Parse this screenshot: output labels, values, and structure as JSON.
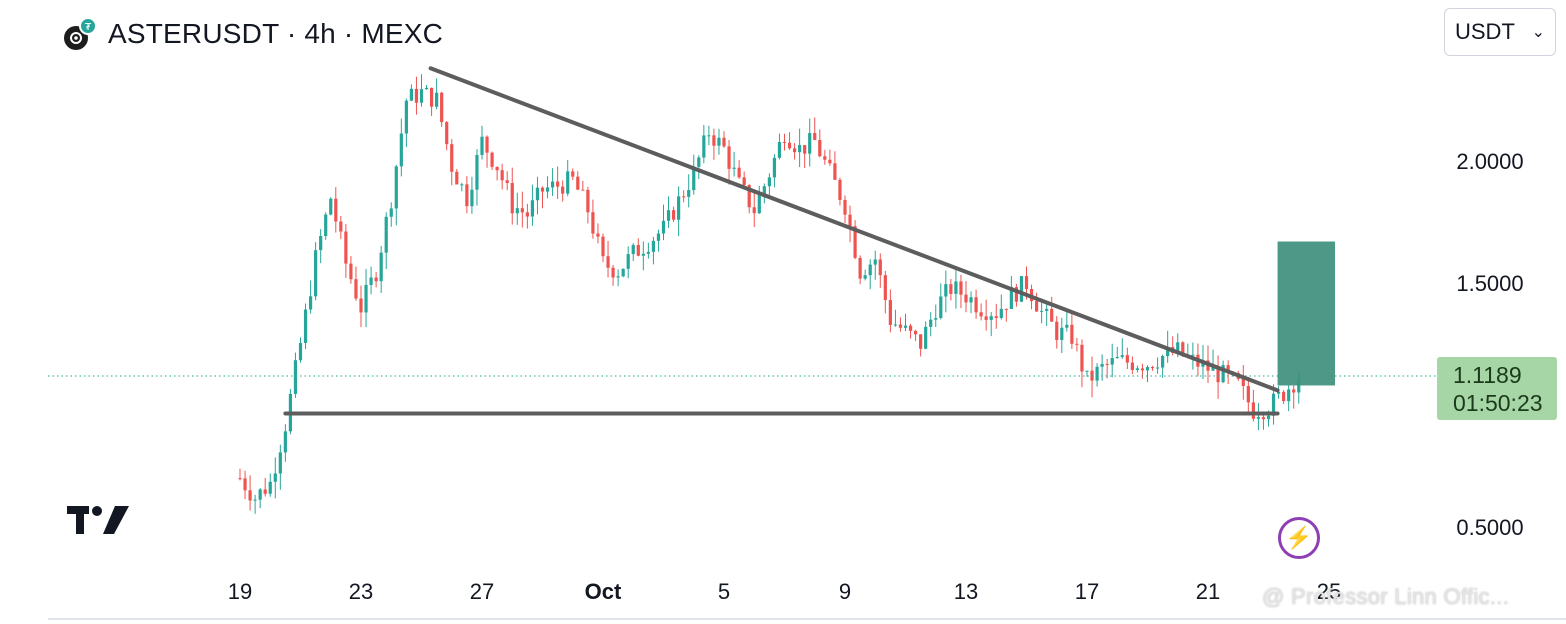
{
  "header": {
    "title": "ASTERUSDT · 4h · MEXC",
    "logo_icon": "aster-token-icon"
  },
  "currency_select": {
    "value": "USDT",
    "chevron_icon": "chevron-down-icon"
  },
  "price_label": {
    "price": "1.1189",
    "countdown": "01:50:23",
    "color": "#a6d6a5"
  },
  "watermark": "@ Professor Linn Offic...",
  "colors": {
    "up": "#26a69a",
    "down": "#ef5350",
    "trendline": "#5d5d5d",
    "position_box": "#3f8f7d"
  },
  "chart_data": {
    "type": "candlestick",
    "symbol": "ASTERUSDT",
    "interval": "4h",
    "exchange": "MEXC",
    "y_ticks": [
      "2.0000",
      "1.5000",
      "0.5000"
    ],
    "y_tick_values": [
      2.0,
      1.5,
      0.5
    ],
    "x_ticks": [
      "19",
      "23",
      "27",
      "Oct",
      "5",
      "9",
      "13",
      "17",
      "21",
      "25"
    ],
    "x_tick_days": [
      19,
      23,
      27,
      31,
      35,
      39,
      43,
      47,
      51,
      55
    ],
    "current_price": 1.1189,
    "series_approx_close": [
      {
        "day": 19.0,
        "price": 0.7
      },
      {
        "day": 19.5,
        "price": 0.62
      },
      {
        "day": 20.0,
        "price": 0.68
      },
      {
        "day": 20.5,
        "price": 0.92
      },
      {
        "day": 21.0,
        "price": 1.25
      },
      {
        "day": 21.5,
        "price": 1.6
      },
      {
        "day": 22.0,
        "price": 1.85
      },
      {
        "day": 22.5,
        "price": 1.58
      },
      {
        "day": 23.0,
        "price": 1.4
      },
      {
        "day": 23.5,
        "price": 1.55
      },
      {
        "day": 24.0,
        "price": 1.85
      },
      {
        "day": 24.5,
        "price": 2.25
      },
      {
        "day": 25.0,
        "price": 2.28
      },
      {
        "day": 25.5,
        "price": 2.25
      },
      {
        "day": 26.0,
        "price": 1.98
      },
      {
        "day": 26.5,
        "price": 1.85
      },
      {
        "day": 27.0,
        "price": 2.08
      },
      {
        "day": 27.5,
        "price": 1.98
      },
      {
        "day": 28.0,
        "price": 1.82
      },
      {
        "day": 28.5,
        "price": 1.78
      },
      {
        "day": 29.0,
        "price": 1.88
      },
      {
        "day": 30.0,
        "price": 1.92
      },
      {
        "day": 30.5,
        "price": 1.8
      },
      {
        "day": 31.0,
        "price": 1.58
      },
      {
        "day": 31.5,
        "price": 1.55
      },
      {
        "day": 32.0,
        "price": 1.62
      },
      {
        "day": 33.0,
        "price": 1.72
      },
      {
        "day": 34.0,
        "price": 1.95
      },
      {
        "day": 34.5,
        "price": 2.12
      },
      {
        "day": 35.0,
        "price": 2.05
      },
      {
        "day": 35.5,
        "price": 1.9
      },
      {
        "day": 36.0,
        "price": 1.8
      },
      {
        "day": 36.5,
        "price": 1.95
      },
      {
        "day": 37.0,
        "price": 2.12
      },
      {
        "day": 37.5,
        "price": 2.05
      },
      {
        "day": 38.0,
        "price": 2.08
      },
      {
        "day": 38.5,
        "price": 1.95
      },
      {
        "day": 39.0,
        "price": 1.82
      },
      {
        "day": 39.5,
        "price": 1.55
      },
      {
        "day": 40.0,
        "price": 1.6
      },
      {
        "day": 40.5,
        "price": 1.35
      },
      {
        "day": 41.0,
        "price": 1.3
      },
      {
        "day": 41.5,
        "price": 1.25
      },
      {
        "day": 42.0,
        "price": 1.4
      },
      {
        "day": 42.5,
        "price": 1.48
      },
      {
        "day": 43.0,
        "price": 1.45
      },
      {
        "day": 43.5,
        "price": 1.4
      },
      {
        "day": 44.0,
        "price": 1.38
      },
      {
        "day": 44.5,
        "price": 1.45
      },
      {
        "day": 45.0,
        "price": 1.5
      },
      {
        "day": 45.5,
        "price": 1.38
      },
      {
        "day": 46.0,
        "price": 1.3
      },
      {
        "day": 46.5,
        "price": 1.28
      },
      {
        "day": 47.0,
        "price": 1.1
      },
      {
        "day": 47.5,
        "price": 1.15
      },
      {
        "day": 48.0,
        "price": 1.18
      },
      {
        "day": 49.0,
        "price": 1.17
      },
      {
        "day": 49.5,
        "price": 1.2
      },
      {
        "day": 50.0,
        "price": 1.22
      },
      {
        "day": 50.5,
        "price": 1.18
      },
      {
        "day": 51.0,
        "price": 1.15
      },
      {
        "day": 51.5,
        "price": 1.12
      },
      {
        "day": 52.0,
        "price": 1.08
      },
      {
        "day": 52.5,
        "price": 0.98
      },
      {
        "day": 53.0,
        "price": 0.99
      },
      {
        "day": 53.5,
        "price": 1.05
      },
      {
        "day": 54.0,
        "price": 1.1189
      }
    ],
    "annotations": {
      "descending_trendline": [
        {
          "day": 25.3,
          "price": 2.38
        },
        {
          "day": 53.3,
          "price": 1.06
        }
      ],
      "support_line": [
        {
          "day": 20.5,
          "price": 0.965
        },
        {
          "day": 53.3,
          "price": 0.965
        }
      ],
      "long_position_target_zone": {
        "day_from": 53.3,
        "day_to": 55.2,
        "price_low": 1.08,
        "price_high": 1.67
      }
    },
    "grid": false,
    "legend": "none"
  }
}
